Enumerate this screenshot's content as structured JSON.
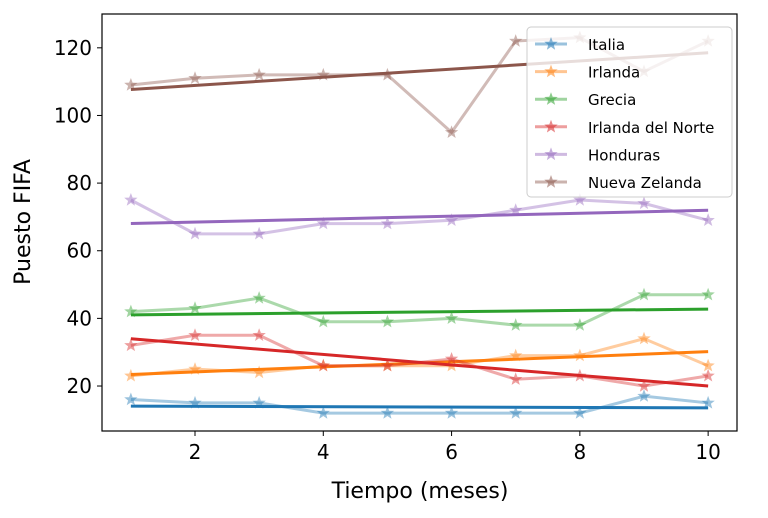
{
  "chart_data": {
    "type": "line",
    "title": "",
    "xlabel": "Tiempo (meses)",
    "ylabel": "Puesto FIFA",
    "xlim": [
      0.55,
      10.45
    ],
    "ylim": [
      6.7,
      130
    ],
    "xticks": [
      2,
      4,
      6,
      8,
      10
    ],
    "yticks": [
      20,
      40,
      60,
      80,
      100,
      120
    ],
    "grid": false,
    "legend_position": "top-right",
    "x": [
      1,
      2,
      3,
      4,
      5,
      6,
      7,
      8,
      9,
      10
    ],
    "series": [
      {
        "name": "Italia",
        "color": "#1f77b4",
        "values": [
          16,
          15,
          15,
          12,
          12,
          12,
          12,
          12,
          17,
          15
        ]
      },
      {
        "name": "Irlanda",
        "color": "#ff7f0e",
        "values": [
          23,
          25,
          24,
          26,
          26,
          26,
          29,
          29,
          34,
          26
        ]
      },
      {
        "name": "Grecia",
        "color": "#2ca02c",
        "values": [
          42,
          43,
          46,
          39,
          39,
          40,
          38,
          38,
          47,
          47
        ]
      },
      {
        "name": "Irlanda del Norte",
        "color": "#d62728",
        "values": [
          32,
          35,
          35,
          26,
          26,
          28,
          22,
          23,
          20,
          23
        ]
      },
      {
        "name": "Honduras",
        "color": "#9467bd",
        "values": [
          75,
          65,
          65,
          68,
          68,
          69,
          72,
          75,
          74,
          69
        ]
      },
      {
        "name": "Nueva Zelanda",
        "color": "#8c564b",
        "values": [
          109,
          111,
          112,
          112,
          112,
          95,
          122,
          123,
          113,
          122
        ]
      }
    ]
  }
}
